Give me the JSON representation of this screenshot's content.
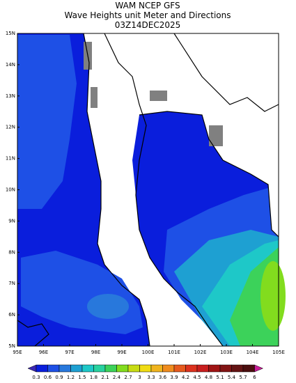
{
  "header": {
    "lines": [
      "WAM NCEP GFS",
      "Wave Heights unit Meter and Directions",
      "03Z14DEC2025"
    ]
  },
  "map": {
    "lat_labels": [
      "15N",
      "14N",
      "13N",
      "12N",
      "11N",
      "10N",
      "9N",
      "8N",
      "7N",
      "6N",
      "5N"
    ],
    "lon_labels": [
      "95E",
      "96E",
      "97E",
      "98E",
      "99E",
      "100E",
      "101E",
      "102E",
      "103E",
      "104E",
      "105E"
    ]
  },
  "legend": {
    "labels": [
      "0.3",
      "0.6",
      "0.9",
      "1.2",
      "1.5",
      "1.8",
      "2.1",
      "2.4",
      "2.7",
      "3",
      "3.3",
      "3.6",
      "3.9",
      "4.2",
      "4.5",
      "4.8",
      "5.1",
      "5.4",
      "5.7",
      "6"
    ],
    "colors": [
      "#3c28b4",
      "#0a1edc",
      "#1e50e6",
      "#2878dc",
      "#1ea0d2",
      "#1ec8c8",
      "#28d2a0",
      "#3cd25a",
      "#82dc1e",
      "#c8dc14",
      "#f0dc14",
      "#f0b41e",
      "#f08c1e",
      "#e65a1e",
      "#dc321e",
      "#c81e1e",
      "#a01414",
      "#821414",
      "#641414",
      "#4b0f0f",
      "#c81e96"
    ]
  }
}
